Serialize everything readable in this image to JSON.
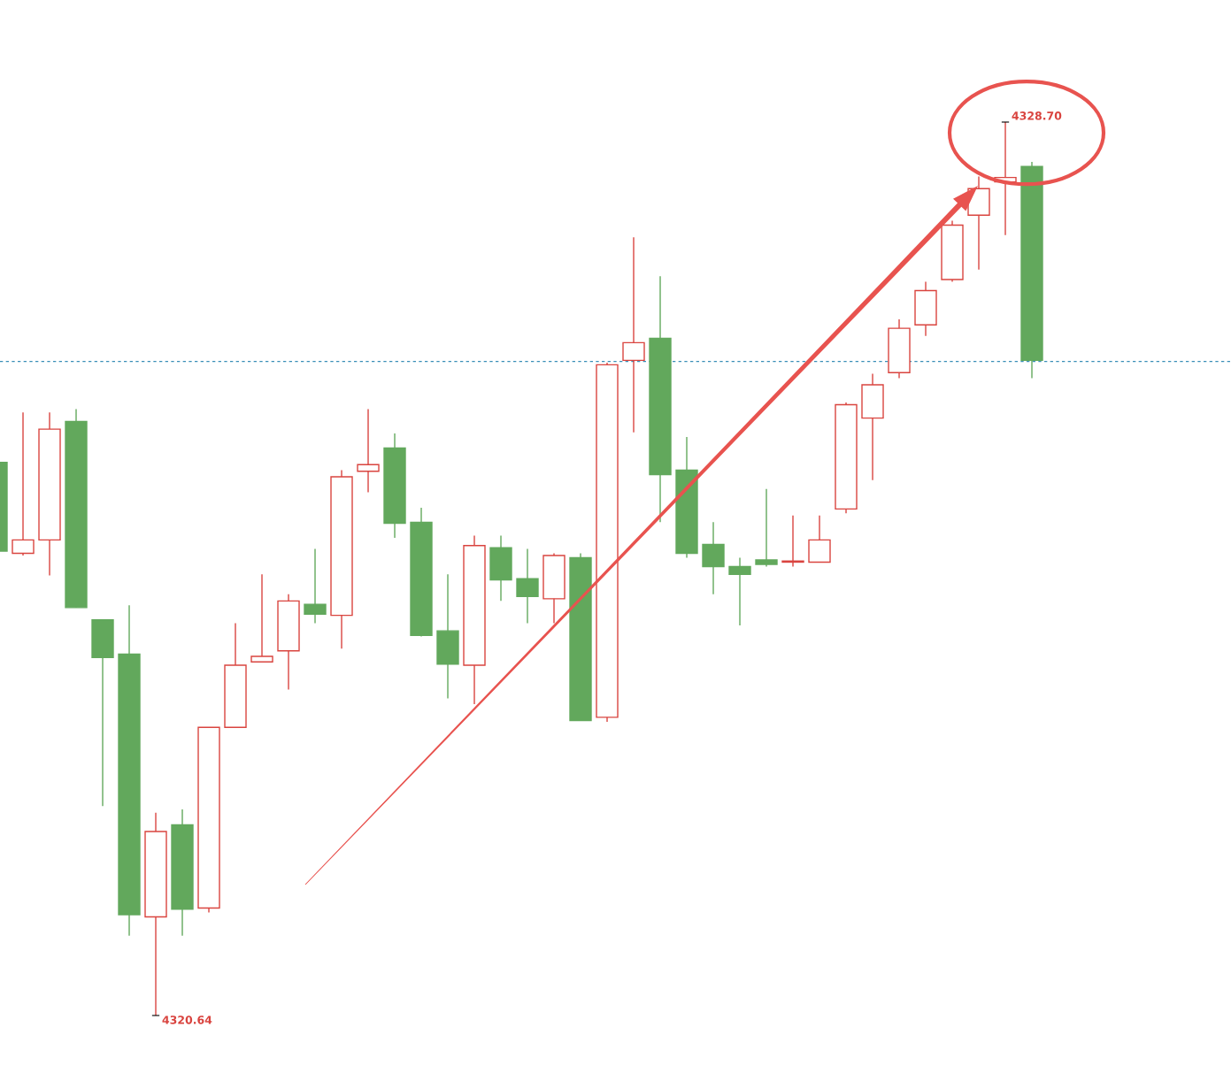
{
  "chart_data": {
    "type": "candlestick",
    "categories": [
      null,
      null,
      null,
      null,
      null,
      null,
      null,
      null,
      null,
      null,
      null,
      null,
      null,
      null,
      null,
      null,
      null,
      null,
      null,
      null,
      null,
      null,
      null,
      null,
      null,
      null,
      null,
      null,
      null,
      null,
      null,
      null,
      null,
      null,
      null,
      null,
      null,
      null,
      null,
      null
    ],
    "ohlc": [
      [
        4325.63,
        4325.63,
        4324.83,
        4324.83
      ],
      [
        4324.81,
        4326.08,
        4324.79,
        4324.93
      ],
      [
        4324.93,
        4326.08,
        4324.61,
        4325.93
      ],
      [
        4326.0,
        4326.11,
        4324.32,
        4324.32
      ],
      [
        4324.21,
        4324.21,
        4322.53,
        4323.87
      ],
      [
        4323.9,
        4324.34,
        4321.36,
        4321.55
      ],
      [
        4321.53,
        4322.47,
        4320.64,
        4322.3
      ],
      [
        4322.36,
        4322.5,
        4321.36,
        4321.6
      ],
      [
        4321.61,
        4323.24,
        4321.57,
        4323.24
      ],
      [
        4323.24,
        4324.18,
        4323.24,
        4323.8
      ],
      [
        4323.83,
        4324.62,
        4323.83,
        4323.88
      ],
      [
        4323.93,
        4324.44,
        4323.58,
        4324.38
      ],
      [
        4324.35,
        4324.85,
        4324.18,
        4324.26
      ],
      [
        4324.25,
        4325.56,
        4323.95,
        4325.5
      ],
      [
        4325.55,
        4326.11,
        4325.36,
        4325.61
      ],
      [
        4325.76,
        4325.89,
        4324.95,
        4325.08
      ],
      [
        4325.09,
        4325.22,
        4324.06,
        4324.07
      ],
      [
        4324.11,
        4324.62,
        4323.5,
        4323.81
      ],
      [
        4323.8,
        4324.97,
        4323.45,
        4324.88
      ],
      [
        4324.86,
        4324.97,
        4324.38,
        4324.57
      ],
      [
        4324.58,
        4324.85,
        4324.18,
        4324.42
      ],
      [
        4324.4,
        4324.81,
        4324.18,
        4324.79
      ],
      [
        4324.77,
        4324.81,
        4323.3,
        4323.3
      ],
      [
        4323.33,
        4326.53,
        4323.29,
        4326.51
      ],
      [
        4326.55,
        4327.66,
        4325.9,
        4326.71
      ],
      [
        4326.75,
        4327.31,
        4325.09,
        4325.52
      ],
      [
        4325.56,
        4325.86,
        4324.77,
        4324.81
      ],
      [
        4324.89,
        4325.09,
        4324.44,
        4324.69
      ],
      [
        4324.69,
        4324.77,
        4324.16,
        4324.62
      ],
      [
        4324.75,
        4325.39,
        4324.69,
        4324.71
      ],
      [
        4324.73,
        4325.15,
        4324.69,
        4324.74
      ],
      [
        4324.73,
        4325.15,
        4324.73,
        4324.93
      ],
      [
        4325.21,
        4326.17,
        4325.17,
        4326.15
      ],
      [
        4326.03,
        4326.43,
        4325.47,
        4326.33
      ],
      [
        4326.44,
        4326.92,
        4326.39,
        4326.84
      ],
      [
        4326.87,
        4327.26,
        4326.77,
        4327.18
      ],
      [
        4327.28,
        4327.81,
        4327.26,
        4327.77
      ],
      [
        4327.86,
        4328.21,
        4327.37,
        4328.1
      ],
      [
        4328.16,
        4328.7,
        4327.68,
        4328.2
      ],
      [
        4328.3,
        4328.34,
        4326.39,
        4326.55
      ]
    ],
    "colors": [
      "#62a85c",
      "#d9443f",
      "#d9443f",
      "#62a85c",
      "#62a85c",
      "#62a85c",
      "#d9443f",
      "#62a85c",
      "#d9443f",
      "#d9443f",
      "#d9443f",
      "#d9443f",
      "#62a85c",
      "#d9443f",
      "#d9443f",
      "#62a85c",
      "#62a85c",
      "#62a85c",
      "#d9443f",
      "#62a85c",
      "#62a85c",
      "#d9443f",
      "#62a85c",
      "#d9443f",
      "#d9443f",
      "#62a85c",
      "#62a85c",
      "#62a85c",
      "#62a85c",
      "#62a85c",
      "#d9443f",
      "#d9443f",
      "#d9443f",
      "#d9443f",
      "#d9443f",
      "#d9443f",
      "#d9443f",
      "#d9443f",
      "#d9443f",
      "#62a85c"
    ],
    "ref_lines": [
      {
        "axis": "y",
        "value": 4326.54,
        "color": "#3a8fb7",
        "line_style": "dashed"
      }
    ],
    "annotations": [
      "4328.70",
      "4320.64"
    ]
  }
}
